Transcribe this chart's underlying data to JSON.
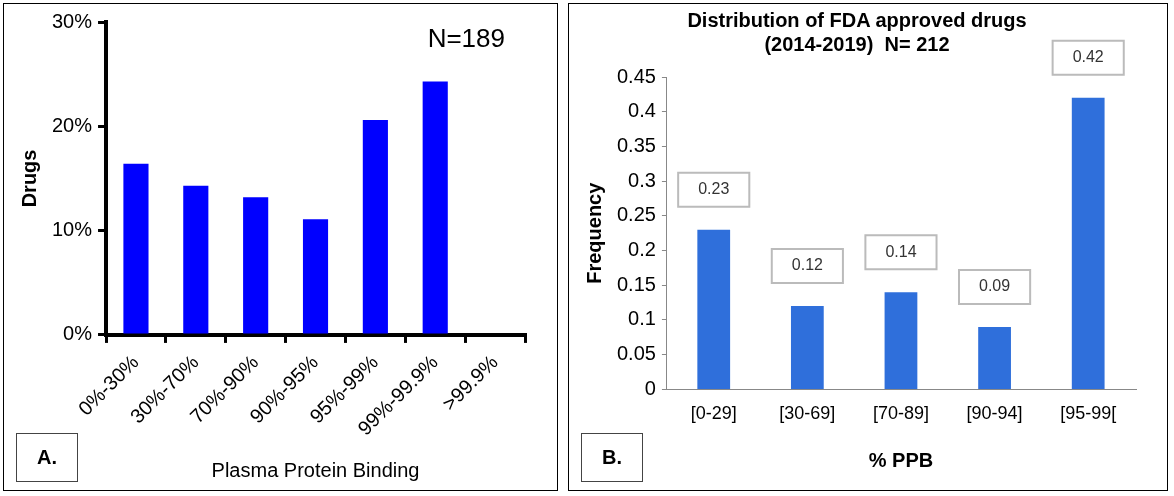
{
  "chart_data": [
    {
      "type": "bar",
      "ylabel": "Drugs",
      "xlabel": "Plasma Protein Binding",
      "annotations": [
        "N=189",
        "A."
      ],
      "categories": [
        "0%-30%",
        "30%-70%",
        "70%-90%",
        "90%-95%",
        "95%-99%",
        "99%-99.9%",
        ">99.9%"
      ],
      "values": [
        16.4,
        14.3,
        13.2,
        11.1,
        20.6,
        24.3,
        0
      ],
      "color": "#0000ff",
      "ylim": [
        0,
        30
      ],
      "yticks": [
        {
          "value": 0,
          "label": "0%"
        },
        {
          "value": 10,
          "label": "10%"
        },
        {
          "value": 20,
          "label": "20%"
        },
        {
          "value": 30,
          "label": "30%"
        }
      ],
      "grid": false,
      "legend": false
    },
    {
      "type": "bar",
      "title": "Distribution of FDA approved drugs\n(2014-2019)  N= 212",
      "ylabel": "Frequency",
      "xlabel": "% PPB",
      "annotations": [
        "B."
      ],
      "categories": [
        "[0-29]",
        "[30-69]",
        "[70-89]",
        "[90-94]",
        "[95-99["
      ],
      "values": [
        0.23,
        0.12,
        0.14,
        0.09,
        0.42
      ],
      "color": "#2f6fdb",
      "data_labels": true,
      "ylim": [
        0,
        0.45
      ],
      "yticks": [
        0,
        0.05,
        0.1,
        0.15,
        0.2,
        0.25,
        0.3,
        0.35,
        0.4,
        0.45
      ],
      "grid": false,
      "legend": false
    }
  ]
}
